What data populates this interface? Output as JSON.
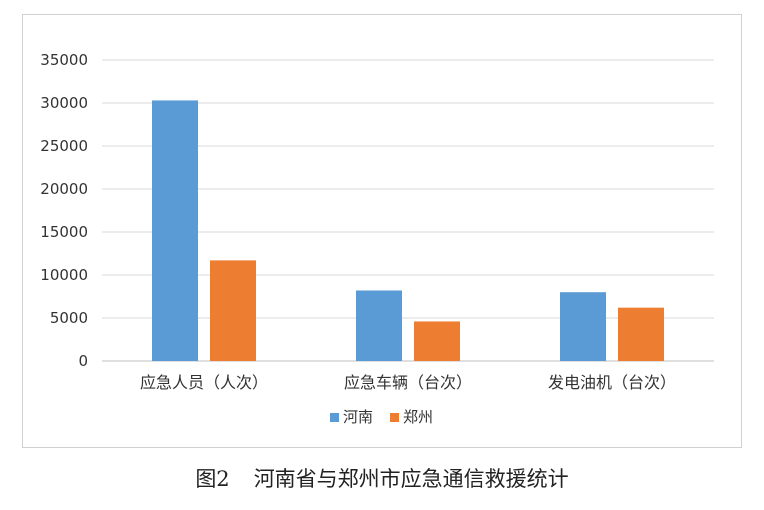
{
  "chart_data": {
    "type": "bar",
    "categories": [
      "应急人员（人次）",
      "应急车辆（台次）",
      "发电油机（台次）"
    ],
    "series": [
      {
        "name": "河南",
        "values": [
          30300,
          8200,
          8000
        ],
        "color": "#5b9bd5"
      },
      {
        "name": "郑州",
        "values": [
          11700,
          4600,
          6200
        ],
        "color": "#ed7d31"
      }
    ],
    "ylim": [
      0,
      35000
    ],
    "yticks": [
      0,
      5000,
      10000,
      15000,
      20000,
      25000,
      30000,
      35000
    ],
    "grid": true,
    "legend_position": "bottom"
  },
  "caption": {
    "number": "图2",
    "text": "河南省与郑州市应急通信救援统计"
  }
}
